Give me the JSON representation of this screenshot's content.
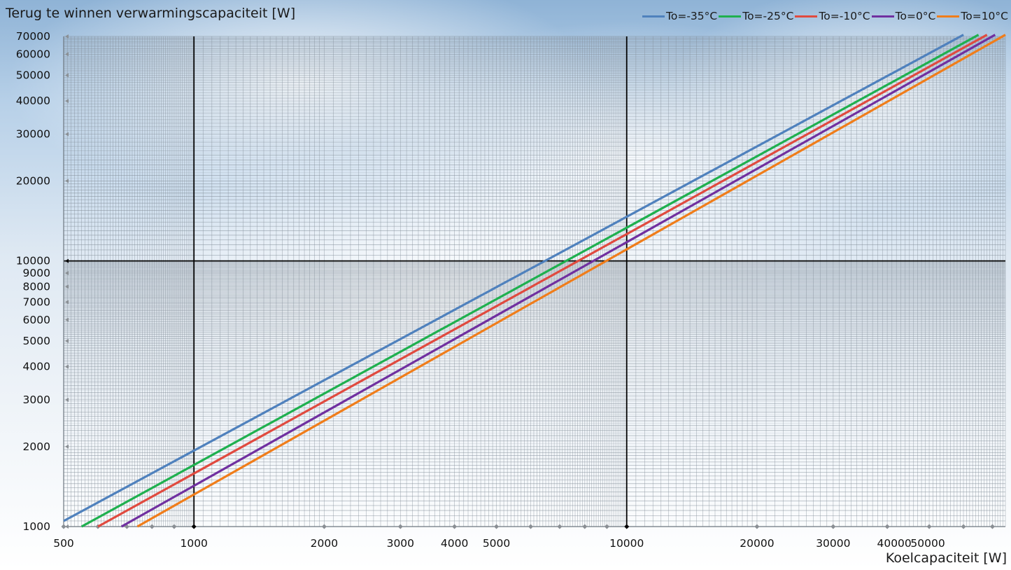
{
  "chart_data": {
    "type": "line",
    "title": "",
    "ylabel": "Terug te winnen verwarmingscapaciteit [W]",
    "xlabel": "Koelcapaciteit [W]",
    "x_scale": "log",
    "y_scale": "log",
    "xlim": [
      500,
      75000
    ],
    "ylim": [
      1000,
      70000
    ],
    "x_ticks": [
      500,
      1000,
      2000,
      3000,
      4000,
      5000,
      10000,
      20000,
      30000,
      40000,
      50000
    ],
    "x_tick_labels": [
      "500",
      "1000",
      "2000",
      "3000",
      "4000",
      "5000",
      "10000",
      "20000",
      "30000",
      "40000",
      "50000"
    ],
    "y_ticks": [
      1000,
      2000,
      3000,
      4000,
      5000,
      6000,
      7000,
      8000,
      9000,
      10000,
      20000,
      30000,
      40000,
      50000,
      60000,
      70000
    ],
    "y_tick_labels": [
      "1000",
      "2000",
      "3000",
      "4000",
      "5000",
      "6000",
      "7000",
      "8000",
      "9000",
      "10000",
      "20000",
      "30000",
      "40000",
      "50000",
      "60000",
      "70000"
    ],
    "grid": true,
    "legend_position": "top-right",
    "series": [
      {
        "name": "To=-35°C",
        "color": "#4f81bd",
        "x": [
          500,
          60000
        ],
        "y": [
          1050,
          71000
        ]
      },
      {
        "name": "To=-25°C",
        "color": "#1fb04f",
        "x": [
          550,
          65000
        ],
        "y": [
          1000,
          71000
        ]
      },
      {
        "name": "To=-10°C",
        "color": "#e04a3f",
        "x": [
          600,
          68000
        ],
        "y": [
          1000,
          71000
        ]
      },
      {
        "name": "To=0°C",
        "color": "#7030a0",
        "x": [
          680,
          71000
        ],
        "y": [
          1000,
          71000
        ]
      },
      {
        "name": "To=10°C",
        "color": "#f07d1a",
        "x": [
          740,
          75000
        ],
        "y": [
          1000,
          71000
        ]
      }
    ]
  }
}
